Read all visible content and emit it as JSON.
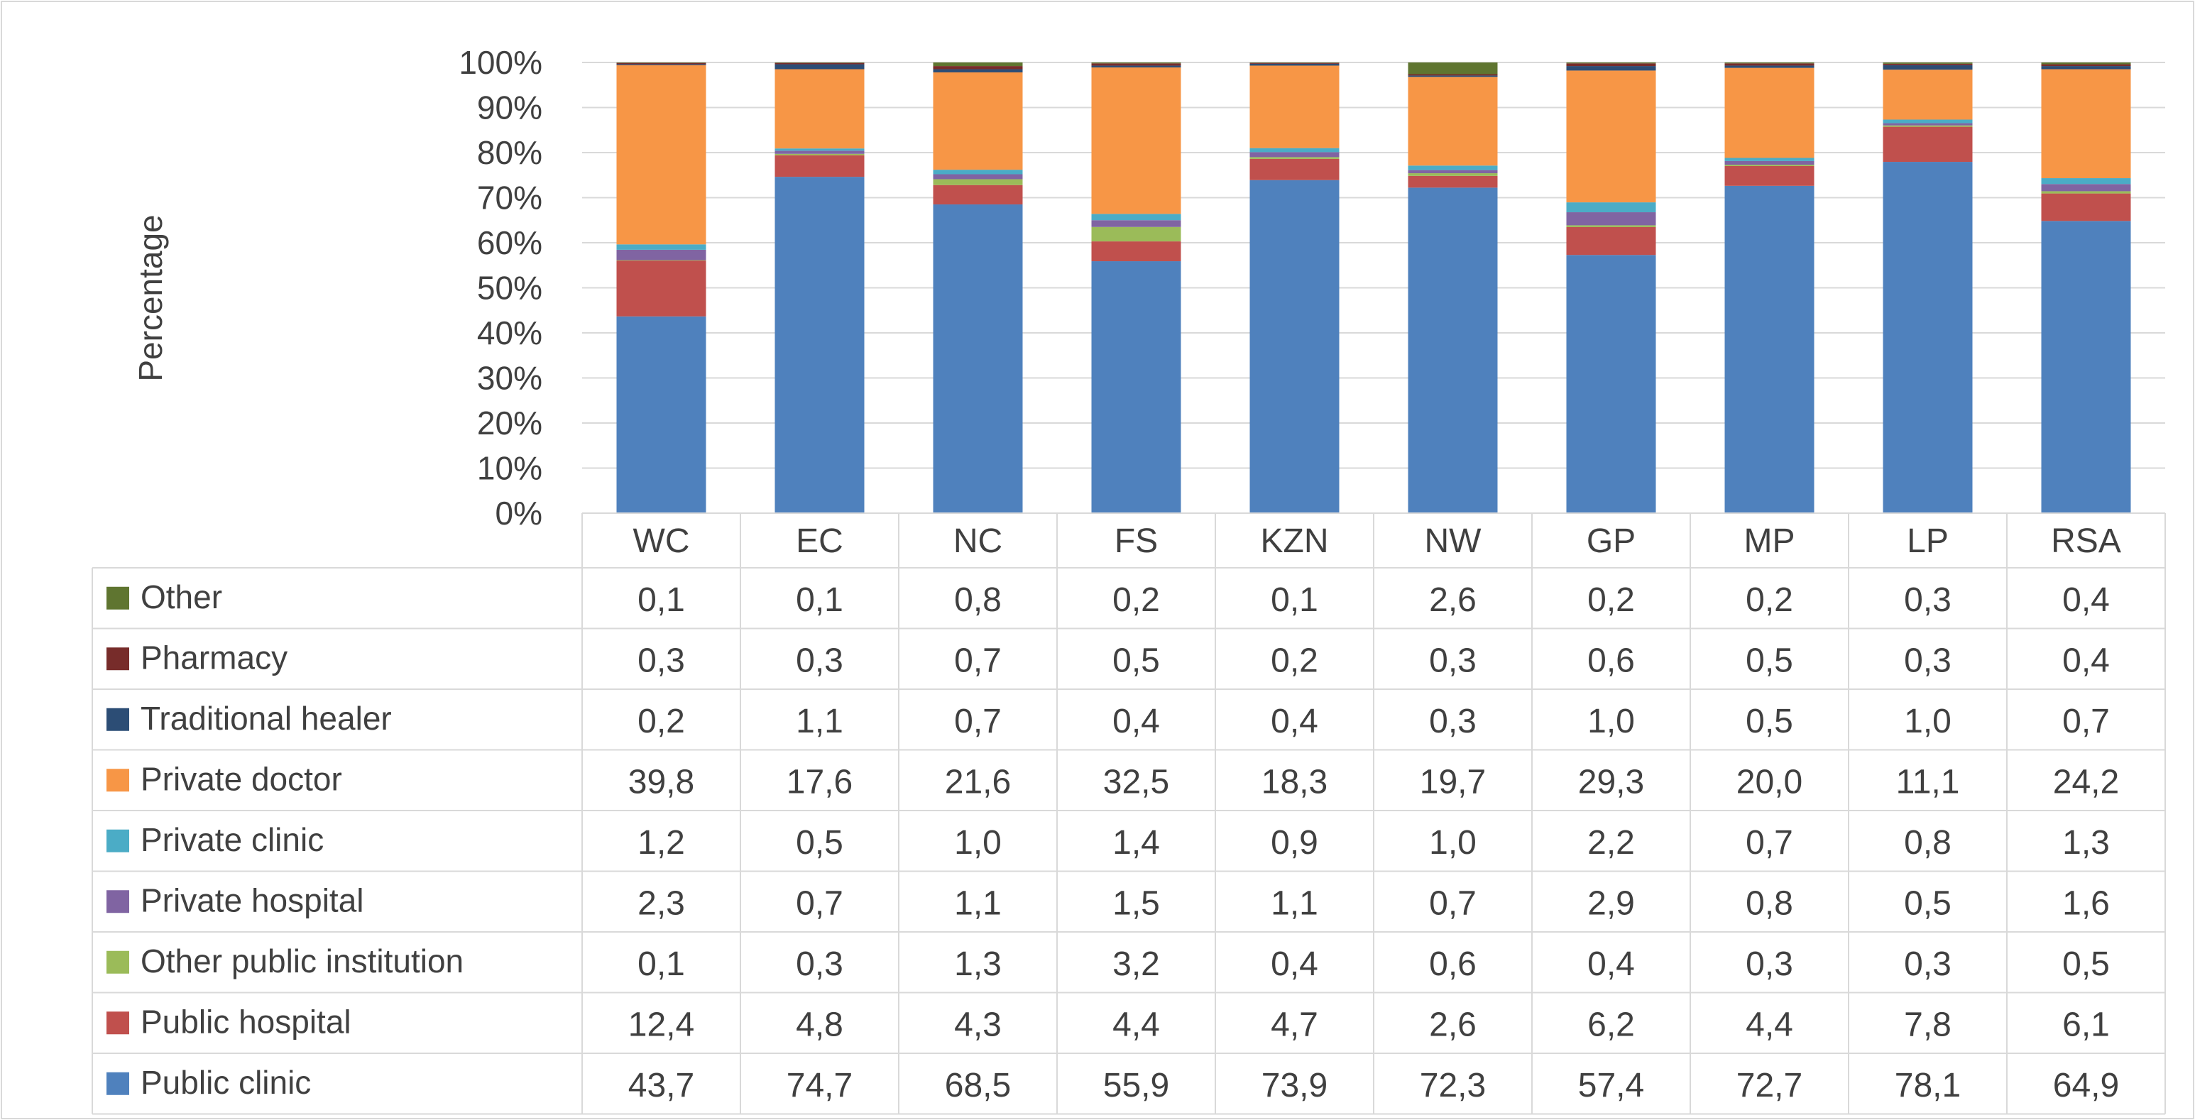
{
  "chart_data": {
    "type": "bar",
    "stacked": true,
    "stacked_percent": true,
    "title": "",
    "xlabel": "",
    "ylabel": "Percentage",
    "ylim": [
      0,
      100
    ],
    "yticks": [
      "0%",
      "10%",
      "20%",
      "30%",
      "40%",
      "50%",
      "60%",
      "70%",
      "80%",
      "90%",
      "100%"
    ],
    "grid": true,
    "legend": "data-table-left",
    "categories": [
      "WC",
      "EC",
      "NC",
      "FS",
      "KZN",
      "NW",
      "GP",
      "MP",
      "LP",
      "RSA"
    ],
    "series": [
      {
        "name": "Public clinic",
        "color": "#4f81bd",
        "values": [
          43.7,
          74.7,
          68.5,
          55.9,
          73.9,
          72.3,
          57.4,
          72.7,
          78.1,
          64.9
        ],
        "labels": [
          "43,7",
          "74,7",
          "68,5",
          "55,9",
          "73,9",
          "72,3",
          "57,4",
          "72,7",
          "78,1",
          "64,9"
        ]
      },
      {
        "name": "Public hospital",
        "color": "#c0504d",
        "values": [
          12.4,
          4.8,
          4.3,
          4.4,
          4.7,
          2.6,
          6.2,
          4.4,
          7.8,
          6.1
        ],
        "labels": [
          "12,4",
          "4,8",
          "4,3",
          "4,4",
          "4,7",
          "2,6",
          "6,2",
          "4,4",
          "7,8",
          "6,1"
        ]
      },
      {
        "name": "Other public institution",
        "color": "#9bbb59",
        "values": [
          0.1,
          0.3,
          1.3,
          3.2,
          0.4,
          0.6,
          0.4,
          0.3,
          0.3,
          0.5
        ],
        "labels": [
          "0,1",
          "0,3",
          "1,3",
          "3,2",
          "0,4",
          "0,6",
          "0,4",
          "0,3",
          "0,3",
          "0,5"
        ]
      },
      {
        "name": "Private hospital",
        "color": "#8064a2",
        "values": [
          2.3,
          0.7,
          1.1,
          1.5,
          1.1,
          0.7,
          2.9,
          0.8,
          0.5,
          1.6
        ],
        "labels": [
          "2,3",
          "0,7",
          "1,1",
          "1,5",
          "1,1",
          "0,7",
          "2,9",
          "0,8",
          "0,5",
          "1,6"
        ]
      },
      {
        "name": "Private clinic",
        "color": "#4bacc6",
        "values": [
          1.2,
          0.5,
          1.0,
          1.4,
          0.9,
          1.0,
          2.2,
          0.7,
          0.8,
          1.3
        ],
        "labels": [
          "1,2",
          "0,5",
          "1,0",
          "1,4",
          "0,9",
          "1,0",
          "2,2",
          "0,7",
          "0,8",
          "1,3"
        ]
      },
      {
        "name": "Private doctor",
        "color": "#f79646",
        "values": [
          39.8,
          17.6,
          21.6,
          32.5,
          18.3,
          19.7,
          29.3,
          20.0,
          11.1,
          24.2
        ],
        "labels": [
          "39,8",
          "17,6",
          "21,6",
          "32,5",
          "18,3",
          "19,7",
          "29,3",
          "20,0",
          "11,1",
          "24,2"
        ]
      },
      {
        "name": "Traditional healer",
        "color": "#2c4d75",
        "values": [
          0.2,
          1.1,
          0.7,
          0.4,
          0.4,
          0.3,
          1.0,
          0.5,
          1.0,
          0.7
        ],
        "labels": [
          "0,2",
          "1,1",
          "0,7",
          "0,4",
          "0,4",
          "0,3",
          "1,0",
          "0,5",
          "1,0",
          "0,7"
        ]
      },
      {
        "name": "Pharmacy",
        "color": "#772c2a",
        "values": [
          0.3,
          0.3,
          0.7,
          0.5,
          0.2,
          0.3,
          0.6,
          0.5,
          0.3,
          0.4
        ],
        "labels": [
          "0,3",
          "0,3",
          "0,7",
          "0,5",
          "0,2",
          "0,3",
          "0,6",
          "0,5",
          "0,3",
          "0,4"
        ]
      },
      {
        "name": "Other",
        "color": "#5f7530",
        "values": [
          0.1,
          0.1,
          0.8,
          0.2,
          0.1,
          2.6,
          0.2,
          0.2,
          0.3,
          0.4
        ],
        "labels": [
          "0,1",
          "0,1",
          "0,8",
          "0,2",
          "0,1",
          "2,6",
          "0,2",
          "0,2",
          "0,3",
          "0,4"
        ]
      }
    ],
    "table_row_order": [
      "Other",
      "Pharmacy",
      "Traditional healer",
      "Private doctor",
      "Private clinic",
      "Private hospital",
      "Other public institution",
      "Public hospital",
      "Public clinic"
    ]
  }
}
